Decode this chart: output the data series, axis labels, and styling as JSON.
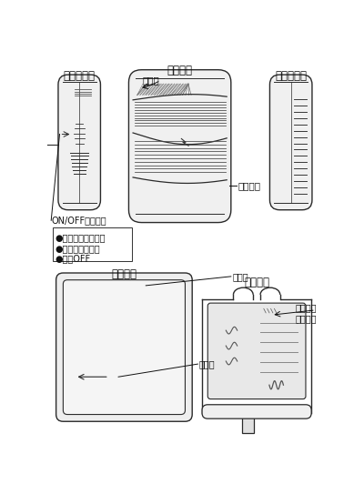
{
  "bg_color": "#ffffff",
  "lc": "#2a2a2a",
  "labels": {
    "right_side": "《右側面》",
    "front": "《正面》",
    "left_side": "《左側面》",
    "back": "《裏面》",
    "interior": "《内部》",
    "lamp": "ランプ",
    "speaker": "スピーカ",
    "on_off": "ON/OFFスイッチ",
    "bullet1": "●ランプ＋チャイム",
    "bullet2": "●ランプのみ点滅",
    "bullet3": "●電源OFF",
    "toritsuke": "取付穴",
    "urabuta": "裏ブタ",
    "select": "セレクト\nスイッチ"
  }
}
